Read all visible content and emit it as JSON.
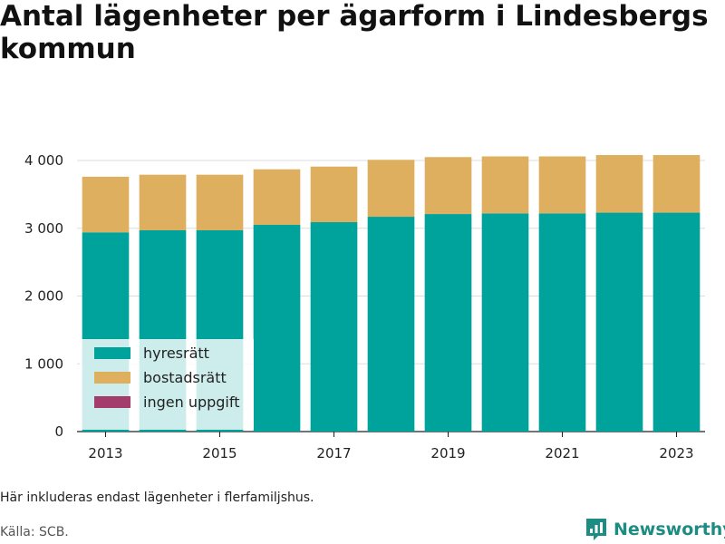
{
  "title": "Antal lägenheter per ägarform i Lindesbergs kommun",
  "footnote": "Här inkluderas endast lägenheter i flerfamiljshus.",
  "source": "Källa: SCB.",
  "brand": {
    "name": "Newsworthy",
    "icon": "newsworthy-logo-icon",
    "color": "#1d8c82"
  },
  "chart_data": {
    "type": "bar",
    "stacked": true,
    "categories": [
      2013,
      2014,
      2015,
      2016,
      2017,
      2018,
      2019,
      2020,
      2021,
      2022,
      2023
    ],
    "x_tick_labels": [
      "2013",
      "2015",
      "2017",
      "2019",
      "2021",
      "2023"
    ],
    "series": [
      {
        "name": "hyresrätt",
        "color": "#00a39b",
        "values": [
          2940,
          2970,
          2970,
          3050,
          3090,
          3170,
          3210,
          3220,
          3220,
          3230,
          3230
        ]
      },
      {
        "name": "bostadsrätt",
        "color": "#deaf5e",
        "values": [
          820,
          820,
          820,
          820,
          820,
          840,
          840,
          840,
          840,
          850,
          850
        ]
      },
      {
        "name": "ingen uppgift",
        "color": "#a33e6c",
        "values": [
          0,
          0,
          0,
          0,
          0,
          0,
          0,
          0,
          0,
          0,
          0
        ]
      }
    ],
    "ylim": [
      0,
      4000
    ],
    "y_ticks": [
      0,
      1000,
      2000,
      3000,
      4000
    ],
    "y_tick_labels": [
      "0",
      "1 000",
      "2 000",
      "3 000",
      "4 000"
    ],
    "grid": true,
    "legend_position": "bottom-left"
  }
}
